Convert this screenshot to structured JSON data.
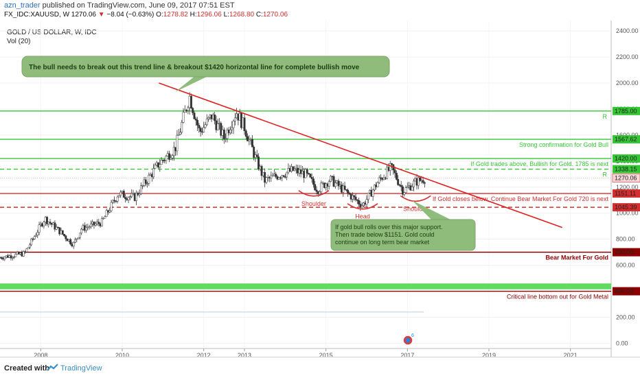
{
  "header": {
    "author": "azn_trader",
    "published": "published on TradingView.com, June 09, 2017 07:51 EST",
    "symbol": "FX_IDC:XAUUSD, W",
    "last": "1270.06",
    "change": "−8.04 (−0.63%)",
    "open_label": "O:",
    "open": "1278.82",
    "high_label": "H:",
    "high": "1296.06",
    "low_label": "L:",
    "low": "1268.80",
    "close_label": "C:",
    "close": "1270.06"
  },
  "chart_data": {
    "type": "candlestick",
    "title": "GOLD / US DOLLAR, W, IDC",
    "indicator": "Vol (20)",
    "x_ticks": [
      "2008",
      "2010",
      "2012",
      "2013",
      "2015",
      "2017",
      "2019",
      "2021"
    ],
    "y_ticks": [
      "2400.00",
      "2200.00",
      "2000.00",
      "1800.00",
      "1600.00",
      "1400.00",
      "1200.00",
      "1000.00",
      "800.00",
      "600.00",
      "400.00",
      "200.00",
      "0.00"
    ],
    "ylim": [
      -40,
      2480
    ],
    "xlim": [
      2007.0,
      2022.0
    ],
    "price_path": [
      [
        2007.0,
        660
      ],
      [
        2007.6,
        690
      ],
      [
        2008.1,
        960
      ],
      [
        2008.4,
        880
      ],
      [
        2008.8,
        760
      ],
      [
        2009.0,
        880
      ],
      [
        2009.5,
        930
      ],
      [
        2009.9,
        1150
      ],
      [
        2010.3,
        1120
      ],
      [
        2010.6,
        1250
      ],
      [
        2010.9,
        1380
      ],
      [
        2011.3,
        1500
      ],
      [
        2011.65,
        1900
      ],
      [
        2011.9,
        1620
      ],
      [
        2012.2,
        1750
      ],
      [
        2012.5,
        1580
      ],
      [
        2012.8,
        1780
      ],
      [
        2013.0,
        1660
      ],
      [
        2013.3,
        1400
      ],
      [
        2013.5,
        1250
      ],
      [
        2013.9,
        1300
      ],
      [
        2014.2,
        1330
      ],
      [
        2014.5,
        1300
      ],
      [
        2014.8,
        1180
      ],
      [
        2015.1,
        1260
      ],
      [
        2015.5,
        1160
      ],
      [
        2015.9,
        1060
      ],
      [
        2016.3,
        1250
      ],
      [
        2016.6,
        1350
      ],
      [
        2016.9,
        1170
      ],
      [
        2017.2,
        1240
      ],
      [
        2017.45,
        1270
      ]
    ],
    "trendline": {
      "x1": 2010.9,
      "y1": 2000,
      "x2": 2020.8,
      "y2": 890
    },
    "levels": [
      {
        "price": 1785.0,
        "label": "1785.00",
        "color": "#34c634",
        "style": "solid",
        "note": "R"
      },
      {
        "price": 1567.62,
        "label": "1567.62",
        "color": "#34c634",
        "style": "solid",
        "note": "Strong confirmation for Gold Bull"
      },
      {
        "price": 1420.0,
        "label": "1420.00",
        "color": "#34c634",
        "style": "solid",
        "note": "If Gold trades above, Bullish for Gold. 1785 is next"
      },
      {
        "price": 1338.15,
        "label": "1338.15",
        "color": "#34c634",
        "style": "dashed",
        "note": "R"
      },
      {
        "price": 1151.11,
        "label": "1151.11",
        "color": "#d32f2f",
        "style": "solid",
        "note": "If Gold closes below, Continue Bear Market For Gold 720 is next"
      },
      {
        "price": 1045.39,
        "label": "1045.39",
        "color": "#d32f2f",
        "style": "dashed",
        "note": ""
      },
      {
        "price": 700.0,
        "label": "700.00",
        "color": "#8b0000",
        "style": "solid",
        "note": "Bear Market For Gold"
      },
      {
        "price": 400.0,
        "label": "400.00",
        "color": "#8b0000",
        "style": "solid",
        "note": "Critical line bottom out for Gold Metal"
      }
    ],
    "current_price": {
      "price": 1270.06,
      "label": "1270.06"
    },
    "support_band": [
      415,
      460
    ],
    "pattern_labels": [
      {
        "text": "Shoulder",
        "x": 2014.7,
        "y": 1100
      },
      {
        "text": "Head",
        "x": 2015.9,
        "y": 1000
      },
      {
        "text": "Shoulder",
        "x": 2017.2,
        "y": 1060
      }
    ],
    "callouts": [
      {
        "text": "The bull needs to break out this trend line & breakout $1420 horizontal line for complete bullish move"
      },
      {
        "lines": [
          "If gold bull rolls over this major support.",
          "Then trade below $1151. Gold could",
          "continue on long term bear market"
        ]
      }
    ]
  },
  "footer": {
    "created_with": "Created with",
    "brand": "TradingView"
  }
}
